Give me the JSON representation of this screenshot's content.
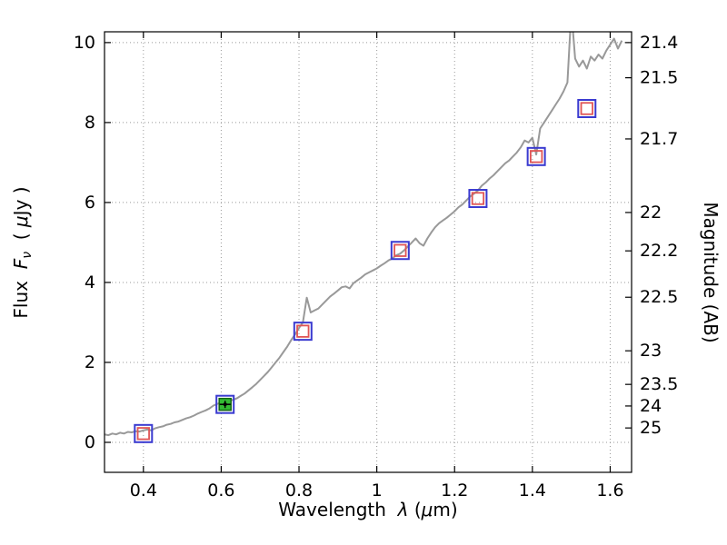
{
  "chart_data": {
    "type": "line+scatter",
    "title": "",
    "labels": {
      "x_prefix": "Wavelength  ",
      "x_lambda": "λ",
      "x_paren": " (",
      "x_mu": "μ",
      "x_unit": "m)",
      "y_prefix": "Flux  ",
      "y_F": "F",
      "y_nu": "ν",
      "y_open": "  ( ",
      "y_mu": "μ",
      "y_unit": "Jy )",
      "right": "Magnitude (AB)"
    },
    "x_range": [
      0.3,
      1.655
    ],
    "y_range": [
      -0.75,
      10.27
    ],
    "grid": "dotted",
    "x_ticks": [
      {
        "v": 0.4,
        "label": "0.4"
      },
      {
        "v": 0.6,
        "label": "0.6"
      },
      {
        "v": 0.8,
        "label": "0.8"
      },
      {
        "v": 1.0,
        "label": "1"
      },
      {
        "v": 1.2,
        "label": "1.2"
      },
      {
        "v": 1.4,
        "label": "1.4"
      },
      {
        "v": 1.6,
        "label": "1.6"
      }
    ],
    "y_ticks": [
      {
        "v": 0,
        "label": "0"
      },
      {
        "v": 2,
        "label": "2"
      },
      {
        "v": 4,
        "label": "4"
      },
      {
        "v": 6,
        "label": "6"
      },
      {
        "v": 8,
        "label": "8"
      },
      {
        "v": 10,
        "label": "10"
      }
    ],
    "right_ticks": [
      {
        "label": "21.4",
        "flux": 10.0
      },
      {
        "label": "21.5",
        "flux": 9.12
      },
      {
        "label": "21.7",
        "flux": 7.59
      },
      {
        "label": "22",
        "flux": 5.75
      },
      {
        "label": "22.2",
        "flux": 4.79
      },
      {
        "label": "22.5",
        "flux": 3.63
      },
      {
        "label": "23",
        "flux": 2.29
      },
      {
        "label": "23.5",
        "flux": 1.45
      },
      {
        "label": "24",
        "flux": 0.91
      },
      {
        "label": "25",
        "flux": 0.36
      }
    ],
    "colors": {
      "spectrum": "#999999",
      "outer_square": "#3a3ad0",
      "inner_square": "#e05555",
      "green_fill": "#33bb33",
      "green_edge": "#116611",
      "errorbar": "#000000",
      "grid": "#999999",
      "axis": "#000000"
    },
    "points": [
      {
        "x": 0.4,
        "y": 0.22
      },
      {
        "x": 0.61,
        "y": 0.95,
        "green": true
      },
      {
        "x": 0.81,
        "y": 2.78
      },
      {
        "x": 1.06,
        "y": 4.8
      },
      {
        "x": 1.26,
        "y": 6.1
      },
      {
        "x": 1.41,
        "y": 7.15
      },
      {
        "x": 1.54,
        "y": 8.35
      }
    ],
    "spectrum": [
      [
        0.3,
        0.2
      ],
      [
        0.31,
        0.18
      ],
      [
        0.32,
        0.22
      ],
      [
        0.33,
        0.2
      ],
      [
        0.34,
        0.24
      ],
      [
        0.35,
        0.22
      ],
      [
        0.36,
        0.26
      ],
      [
        0.37,
        0.25
      ],
      [
        0.38,
        0.28
      ],
      [
        0.39,
        0.27
      ],
      [
        0.4,
        0.3
      ],
      [
        0.41,
        0.32
      ],
      [
        0.42,
        0.3
      ],
      [
        0.43,
        0.35
      ],
      [
        0.44,
        0.38
      ],
      [
        0.45,
        0.4
      ],
      [
        0.46,
        0.44
      ],
      [
        0.47,
        0.46
      ],
      [
        0.48,
        0.5
      ],
      [
        0.49,
        0.52
      ],
      [
        0.5,
        0.56
      ],
      [
        0.51,
        0.6
      ],
      [
        0.52,
        0.63
      ],
      [
        0.53,
        0.67
      ],
      [
        0.54,
        0.72
      ],
      [
        0.55,
        0.76
      ],
      [
        0.56,
        0.8
      ],
      [
        0.57,
        0.85
      ],
      [
        0.58,
        0.92
      ],
      [
        0.59,
        0.96
      ],
      [
        0.6,
        1.0
      ],
      [
        0.61,
        1.02
      ],
      [
        0.62,
        1.05
      ],
      [
        0.63,
        1.06
      ],
      [
        0.64,
        1.1
      ],
      [
        0.65,
        1.16
      ],
      [
        0.66,
        1.22
      ],
      [
        0.67,
        1.3
      ],
      [
        0.68,
        1.38
      ],
      [
        0.69,
        1.46
      ],
      [
        0.7,
        1.56
      ],
      [
        0.71,
        1.66
      ],
      [
        0.72,
        1.76
      ],
      [
        0.73,
        1.88
      ],
      [
        0.74,
        2.0
      ],
      [
        0.75,
        2.12
      ],
      [
        0.76,
        2.26
      ],
      [
        0.77,
        2.4
      ],
      [
        0.78,
        2.56
      ],
      [
        0.79,
        2.7
      ],
      [
        0.8,
        2.86
      ],
      [
        0.81,
        3.0
      ],
      [
        0.82,
        3.62
      ],
      [
        0.83,
        3.25
      ],
      [
        0.84,
        3.3
      ],
      [
        0.85,
        3.35
      ],
      [
        0.86,
        3.45
      ],
      [
        0.87,
        3.55
      ],
      [
        0.88,
        3.65
      ],
      [
        0.89,
        3.72
      ],
      [
        0.9,
        3.8
      ],
      [
        0.91,
        3.88
      ],
      [
        0.92,
        3.9
      ],
      [
        0.93,
        3.85
      ],
      [
        0.94,
        3.98
      ],
      [
        0.95,
        4.05
      ],
      [
        0.96,
        4.12
      ],
      [
        0.97,
        4.2
      ],
      [
        0.98,
        4.25
      ],
      [
        0.99,
        4.3
      ],
      [
        1.0,
        4.35
      ],
      [
        1.01,
        4.42
      ],
      [
        1.02,
        4.48
      ],
      [
        1.03,
        4.55
      ],
      [
        1.04,
        4.6
      ],
      [
        1.05,
        4.68
      ],
      [
        1.06,
        4.72
      ],
      [
        1.07,
        4.8
      ],
      [
        1.08,
        4.9
      ],
      [
        1.09,
        5.0
      ],
      [
        1.1,
        5.1
      ],
      [
        1.11,
        4.98
      ],
      [
        1.12,
        4.92
      ],
      [
        1.13,
        5.1
      ],
      [
        1.14,
        5.25
      ],
      [
        1.15,
        5.38
      ],
      [
        1.16,
        5.48
      ],
      [
        1.17,
        5.55
      ],
      [
        1.18,
        5.62
      ],
      [
        1.19,
        5.7
      ],
      [
        1.2,
        5.78
      ],
      [
        1.21,
        5.88
      ],
      [
        1.22,
        5.95
      ],
      [
        1.23,
        6.05
      ],
      [
        1.24,
        6.15
      ],
      [
        1.25,
        6.22
      ],
      [
        1.26,
        6.3
      ],
      [
        1.27,
        6.42
      ],
      [
        1.28,
        6.5
      ],
      [
        1.29,
        6.6
      ],
      [
        1.3,
        6.68
      ],
      [
        1.31,
        6.78
      ],
      [
        1.32,
        6.88
      ],
      [
        1.33,
        6.98
      ],
      [
        1.34,
        7.05
      ],
      [
        1.35,
        7.15
      ],
      [
        1.36,
        7.25
      ],
      [
        1.37,
        7.38
      ],
      [
        1.38,
        7.55
      ],
      [
        1.39,
        7.5
      ],
      [
        1.4,
        7.62
      ],
      [
        1.41,
        7.2
      ],
      [
        1.42,
        7.85
      ],
      [
        1.43,
        8.0
      ],
      [
        1.44,
        8.15
      ],
      [
        1.45,
        8.3
      ],
      [
        1.46,
        8.45
      ],
      [
        1.47,
        8.6
      ],
      [
        1.48,
        8.78
      ],
      [
        1.49,
        9.0
      ],
      [
        1.5,
        10.8
      ],
      [
        1.51,
        9.6
      ],
      [
        1.52,
        9.4
      ],
      [
        1.53,
        9.55
      ],
      [
        1.54,
        9.35
      ],
      [
        1.55,
        9.65
      ],
      [
        1.56,
        9.55
      ],
      [
        1.57,
        9.7
      ],
      [
        1.58,
        9.6
      ],
      [
        1.59,
        9.8
      ],
      [
        1.6,
        9.95
      ],
      [
        1.61,
        10.1
      ],
      [
        1.62,
        9.85
      ],
      [
        1.63,
        10.05
      ]
    ]
  }
}
